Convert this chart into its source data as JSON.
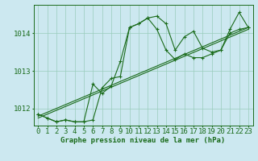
{
  "title": "Graphe pression niveau de la mer (hPa)",
  "background_color": "#cce8f0",
  "plot_bg_color": "#cce8f0",
  "grid_color": "#99ccbb",
  "line_color": "#1a6b1a",
  "text_color": "#1a6b1a",
  "xlim": [
    -0.5,
    23.5
  ],
  "ylim": [
    1011.55,
    1014.75
  ],
  "yticks": [
    1012,
    1013,
    1014
  ],
  "xticks": [
    0,
    1,
    2,
    3,
    4,
    5,
    6,
    7,
    8,
    9,
    10,
    11,
    12,
    13,
    14,
    15,
    16,
    17,
    18,
    19,
    20,
    21,
    22,
    23
  ],
  "series1_x": [
    0,
    1,
    2,
    3,
    4,
    5,
    6,
    7,
    8,
    9,
    10,
    11,
    12,
    13,
    14,
    15,
    16,
    17,
    18,
    19,
    20,
    21,
    22,
    23
  ],
  "series1_y": [
    1011.85,
    1011.75,
    1011.65,
    1011.7,
    1011.65,
    1011.65,
    1012.65,
    1012.4,
    1012.6,
    1013.25,
    1014.15,
    1014.25,
    1014.4,
    1014.45,
    1014.25,
    1013.55,
    1013.9,
    1014.05,
    1013.6,
    1013.5,
    1013.55,
    1014.1,
    1014.55,
    1014.15
  ],
  "series2_x": [
    0,
    1,
    2,
    3,
    4,
    5,
    6,
    7,
    8,
    9,
    10,
    11,
    12,
    13,
    14,
    15,
    16,
    17,
    18,
    19,
    20,
    21,
    22,
    23
  ],
  "series2_y": [
    1011.85,
    1011.75,
    1011.65,
    1011.7,
    1011.65,
    1011.65,
    1011.7,
    1012.55,
    1012.8,
    1012.85,
    1014.15,
    1014.25,
    1014.4,
    1014.1,
    1013.55,
    1013.3,
    1013.45,
    1013.35,
    1013.35,
    1013.45,
    1013.55,
    1014.0,
    1014.1,
    1014.15
  ],
  "trend1_x": [
    0,
    23
  ],
  "trend1_y": [
    1011.75,
    1014.1
  ],
  "trend2_x": [
    0,
    23
  ],
  "trend2_y": [
    1011.8,
    1014.15
  ],
  "xlabel_fontsize": 6.5,
  "tick_fontsize": 6.5,
  "ylabel_fontsize": 6.5
}
